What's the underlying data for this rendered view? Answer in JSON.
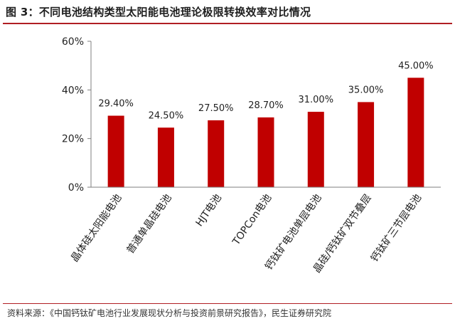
{
  "header": {
    "title": "图 3：不同电池结构类型太阳能电池理论极限转换效率对比情况"
  },
  "footer": {
    "source": "资料来源：《中国钙钛矿电池行业发展现状分析与投资前景研究报告》，民生证券研究院"
  },
  "chart_data": {
    "type": "bar",
    "title": "",
    "xlabel": "",
    "ylabel": "",
    "categories": [
      "晶体硅太阳能电池",
      "普通单晶硅电池",
      "HJT电池",
      "TOPCon电池",
      "钙钛矿电池单层电池",
      "晶硅/钙钛矿双节叠层",
      "钙钛矿三节层电池"
    ],
    "values": [
      29.4,
      24.5,
      27.5,
      28.7,
      31.0,
      35.0,
      45.0
    ],
    "data_labels": [
      "29.40%",
      "24.50%",
      "27.50%",
      "28.70%",
      "31.00%",
      "35.00%",
      "45.00%"
    ],
    "ylim": [
      0,
      60
    ],
    "yticks": [
      0,
      20,
      40,
      60
    ],
    "ytick_labels": [
      "0%",
      "20%",
      "40%",
      "60%"
    ],
    "bar_color": "#c00000",
    "grid": false,
    "legend": "none"
  }
}
